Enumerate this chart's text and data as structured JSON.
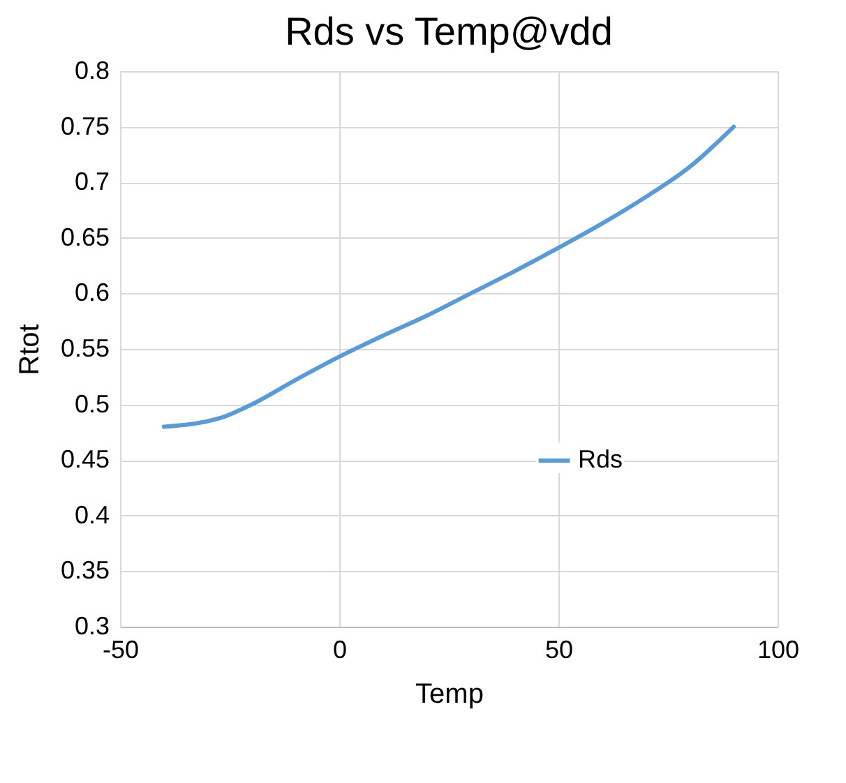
{
  "chart_data": {
    "type": "line",
    "title": "Rds vs Temp@vdd",
    "xlabel": "Temp",
    "ylabel": "Rtot",
    "x": [
      -40,
      -27,
      -20,
      -10,
      0,
      10,
      20,
      30,
      40,
      50,
      60,
      70,
      80,
      90
    ],
    "series": [
      {
        "name": "Rds",
        "color": "#5b9bd5",
        "values": [
          0.48,
          0.488,
          0.5,
          0.522,
          0.543,
          0.562,
          0.58,
          0.6,
          0.62,
          0.641,
          0.663,
          0.687,
          0.714,
          0.75
        ]
      }
    ],
    "xlim": [
      -50,
      100
    ],
    "xticks": [
      -50,
      0,
      50,
      100
    ],
    "ylim": [
      0.3,
      0.8
    ],
    "yticks": [
      0.3,
      0.35,
      0.4,
      0.45,
      0.5,
      0.55,
      0.6,
      0.65,
      0.7,
      0.75,
      0.8
    ],
    "grid": true,
    "legend": "bottom right",
    "marker": "none",
    "line_style": "solid"
  }
}
